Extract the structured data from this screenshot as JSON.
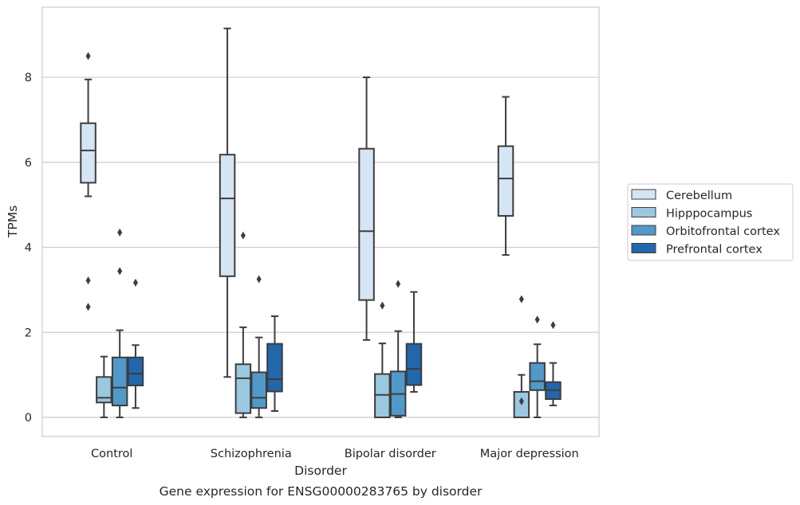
{
  "chart_data": {
    "type": "box",
    "title": "Gene expression for ENSG00000283765 by disorder",
    "xlabel": "Disorder",
    "ylabel": "TPMs",
    "ylim": [
      -0.45,
      9.65
    ],
    "yticks": [
      0,
      2,
      4,
      6,
      8
    ],
    "grid": "horizontal",
    "legend_position": "right",
    "categories": [
      "Control",
      "Schizophrenia",
      "Bipolar disorder",
      "Major depression"
    ],
    "series": [
      {
        "name": "Cerebellum",
        "color": "#d6e5f3",
        "boxes": [
          {
            "whislo": 5.2,
            "q1": 5.52,
            "med": 6.28,
            "q3": 6.92,
            "whishi": 7.95,
            "fliers": [
              8.5,
              3.22,
              2.6
            ]
          },
          {
            "whislo": 0.95,
            "q1": 3.32,
            "med": 5.15,
            "q3": 6.18,
            "whishi": 9.15,
            "fliers": []
          },
          {
            "whislo": 1.82,
            "q1": 2.76,
            "med": 4.38,
            "q3": 6.32,
            "whishi": 8.0,
            "fliers": []
          },
          {
            "whislo": 3.82,
            "q1": 4.74,
            "med": 5.62,
            "q3": 6.38,
            "whishi": 7.54,
            "fliers": []
          }
        ]
      },
      {
        "name": "Hipppocampus",
        "color": "#9ac8e0",
        "boxes": [
          {
            "whislo": 0.0,
            "q1": 0.35,
            "med": 0.46,
            "q3": 0.95,
            "whishi": 1.43,
            "fliers": []
          },
          {
            "whislo": 0.0,
            "q1": 0.1,
            "med": 0.92,
            "q3": 1.25,
            "whishi": 2.12,
            "fliers": [
              4.28
            ]
          },
          {
            "whislo": 0.0,
            "q1": 0.0,
            "med": 0.53,
            "q3": 1.02,
            "whishi": 1.74,
            "fliers": [
              2.63
            ]
          },
          {
            "whislo": 0.0,
            "q1": 0.0,
            "med": 0.0,
            "q3": 0.6,
            "whishi": 1.0,
            "fliers": [
              0.38,
              2.78
            ]
          }
        ]
      },
      {
        "name": "Orbitofrontal cortex",
        "color": "#5199c9",
        "boxes": [
          {
            "whislo": 0.0,
            "q1": 0.28,
            "med": 0.7,
            "q3": 1.41,
            "whishi": 2.05,
            "fliers": [
              4.35,
              3.44
            ]
          },
          {
            "whislo": 0.0,
            "q1": 0.22,
            "med": 0.46,
            "q3": 1.06,
            "whishi": 1.88,
            "fliers": [
              3.25
            ]
          },
          {
            "whislo": 0.0,
            "q1": 0.04,
            "med": 0.55,
            "q3": 1.08,
            "whishi": 2.03,
            "fliers": [
              3.14
            ]
          },
          {
            "whislo": 0.0,
            "q1": 0.64,
            "med": 0.85,
            "q3": 1.28,
            "whishi": 1.72,
            "fliers": [
              2.3
            ]
          }
        ]
      },
      {
        "name": "Prefrontal cortex",
        "color": "#2266ab",
        "boxes": [
          {
            "whislo": 0.22,
            "q1": 0.75,
            "med": 1.03,
            "q3": 1.41,
            "whishi": 1.7,
            "fliers": [
              3.17
            ]
          },
          {
            "whislo": 0.15,
            "q1": 0.61,
            "med": 0.9,
            "q3": 1.73,
            "whishi": 2.38,
            "fliers": []
          },
          {
            "whislo": 0.6,
            "q1": 0.76,
            "med": 1.14,
            "q3": 1.73,
            "whishi": 2.95,
            "fliers": []
          },
          {
            "whislo": 0.28,
            "q1": 0.43,
            "med": 0.64,
            "q3": 0.83,
            "whishi": 1.28,
            "fliers": [
              2.17
            ]
          }
        ]
      }
    ]
  }
}
